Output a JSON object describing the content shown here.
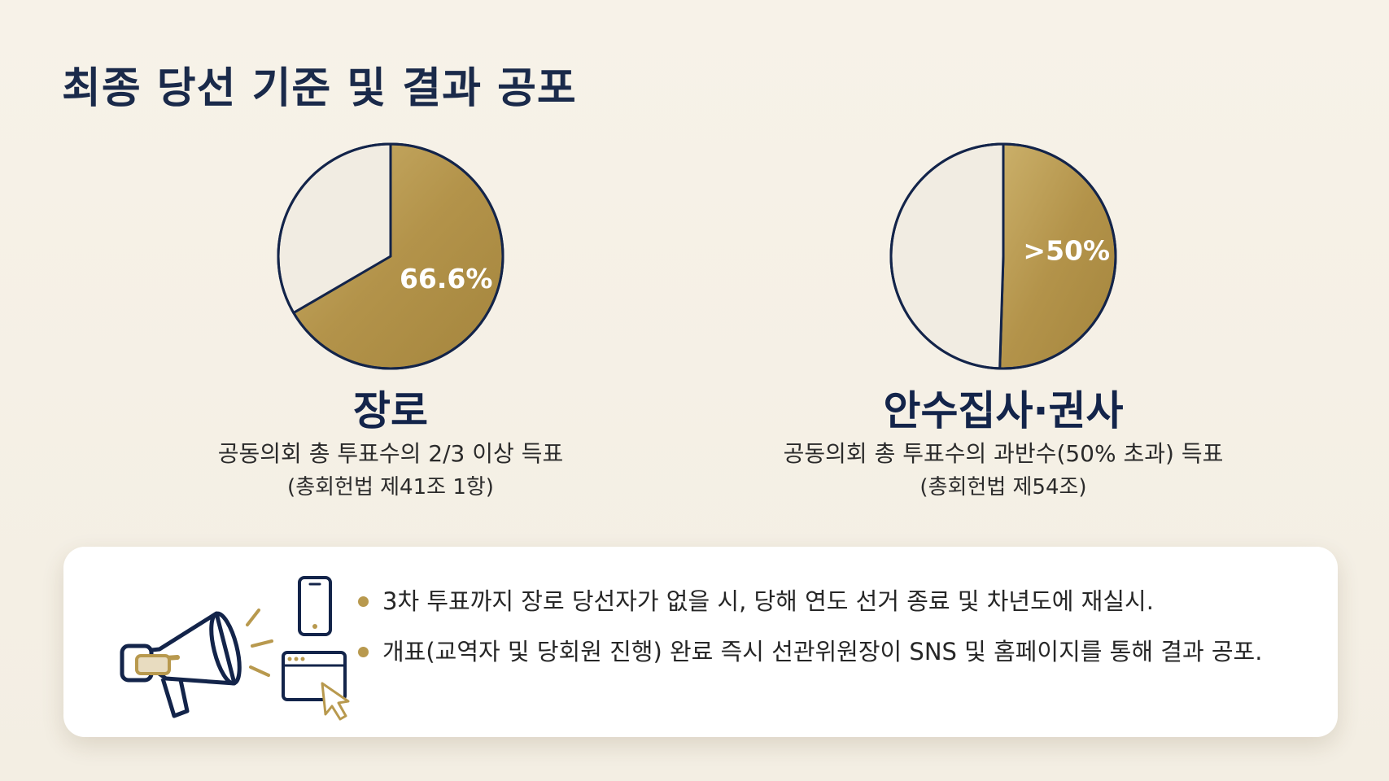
{
  "title": "최종 당선 기준 및 결과 공포",
  "colors": {
    "gold": "#b8994e",
    "cream": "#f1ece2",
    "navy": "#13244a"
  },
  "chart_data": [
    {
      "type": "pie",
      "title": "장로",
      "slices": [
        {
          "label": "66.6%",
          "value": 66.6,
          "color": "#b8994e"
        },
        {
          "label": "",
          "value": 33.4,
          "color": "#f1ece2"
        }
      ],
      "description": "공동의회 총 투표수의 2/3 이상 득표",
      "reference": "(총회헌법 제41조 1항)"
    },
    {
      "type": "pie",
      "title": "안수집사·권사",
      "slices": [
        {
          "label": ">50%",
          "value": 50.5,
          "color": "#b8994e"
        },
        {
          "label": "",
          "value": 49.5,
          "color": "#f1ece2"
        }
      ],
      "description": "공동의회 총 투표수의 과반수(50% 초과) 득표",
      "reference": "(총회헌법 제54조)"
    }
  ],
  "notice": {
    "icons": [
      "megaphone-icon",
      "smartphone-icon",
      "browser-window-icon",
      "cursor-icon"
    ],
    "bullets": [
      "3차 투표까지 장로 당선자가 없을 시, 당해 연도 선거 종료 및 차년도에 재실시.",
      "개표(교역자 및 당회원 진행) 완료 즉시 선관위원장이 SNS 및 홈페이지를 통해 결과 공포."
    ]
  }
}
